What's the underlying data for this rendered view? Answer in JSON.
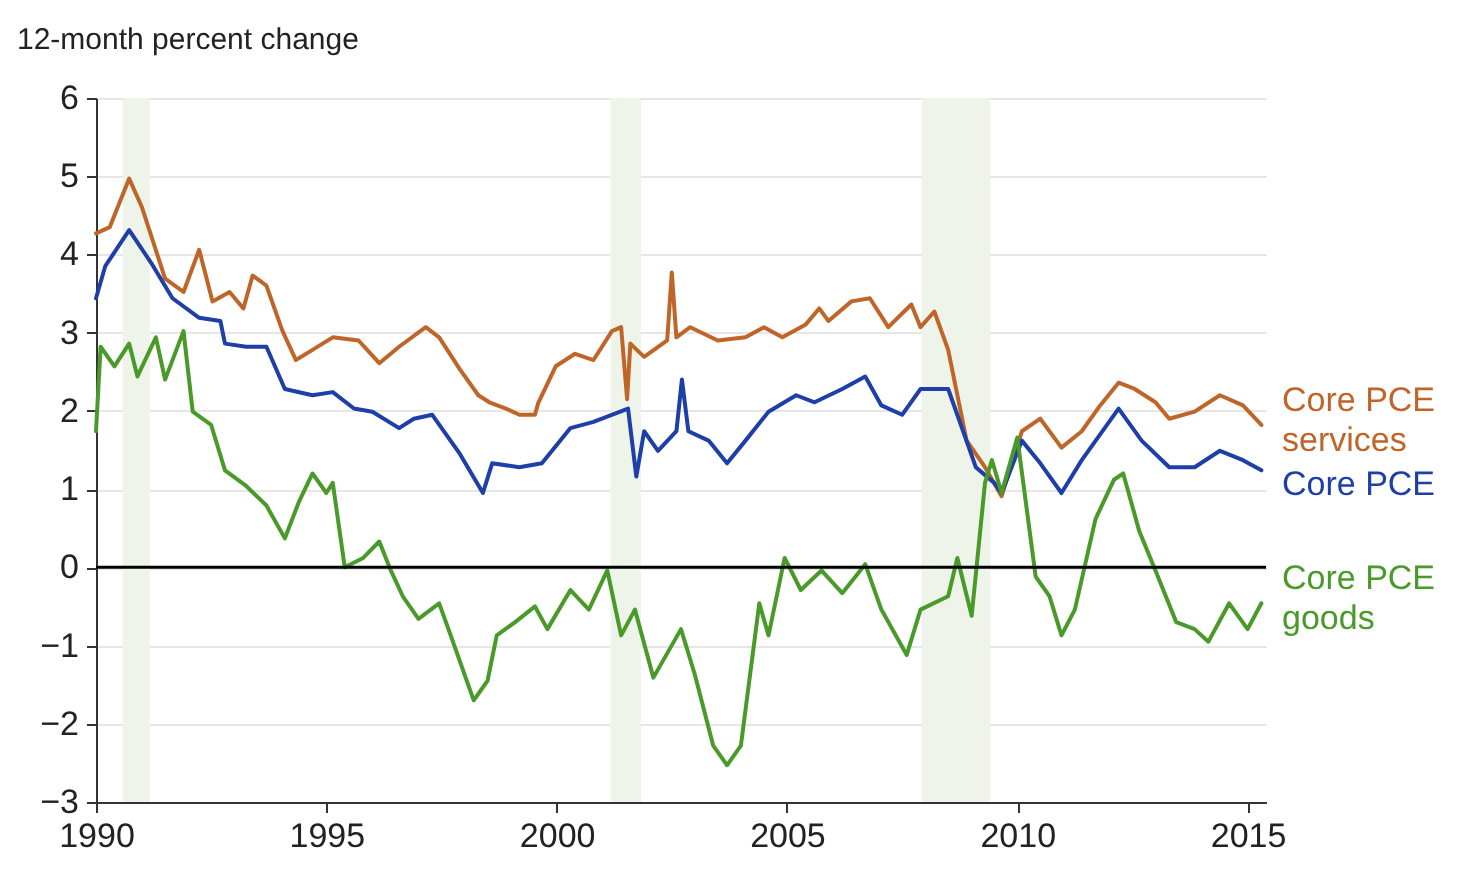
{
  "chart_data": {
    "type": "line",
    "ylabel": "12-month percent change",
    "xlim": [
      1990,
      2015.4
    ],
    "xticks": [
      1990,
      1995,
      2000,
      2005,
      2010,
      2015
    ],
    "ylim": [
      -3,
      6
    ],
    "yticks": [
      -3,
      -2,
      -1,
      0,
      1,
      2,
      3,
      4,
      5,
      6
    ],
    "grid": "y",
    "legend": false,
    "line_style": "solid",
    "marker": "none",
    "ref_lines": [
      {
        "axis": "y",
        "value": 0,
        "color": "#000000"
      }
    ],
    "bands": [
      {
        "axis": "x",
        "from": 1990.58,
        "to": 1991.17,
        "color": "#eef4ea"
      },
      {
        "axis": "x",
        "from": 2001.17,
        "to": 2001.83,
        "color": "#eef4ea"
      },
      {
        "axis": "x",
        "from": 2007.92,
        "to": 2009.42,
        "color": "#eef4ea"
      }
    ],
    "series": [
      {
        "name": "Core PCE services",
        "color": "#c0652a",
        "x": [
          1990.0,
          1990.3,
          1990.72,
          1991.0,
          1991.5,
          1991.9,
          1992.24,
          1992.53,
          1992.9,
          1993.2,
          1993.4,
          1993.7,
          1994.05,
          1994.34,
          1994.7,
          1995.14,
          1995.7,
          1996.15,
          1996.58,
          1997.16,
          1997.45,
          1997.9,
          1998.3,
          1998.54,
          1998.9,
          1999.19,
          1999.53,
          1999.6,
          1999.98,
          2000.4,
          2000.8,
          2001.2,
          2001.4,
          2001.53,
          2001.6,
          2001.9,
          2002.4,
          2002.5,
          2002.6,
          2002.9,
          2003.5,
          2004.1,
          2004.5,
          2004.9,
          2005.4,
          2005.7,
          2005.9,
          2006.4,
          2006.8,
          2007.2,
          2007.7,
          2007.9,
          2008.2,
          2008.5,
          2008.9,
          2009.3,
          2009.66,
          2010.1,
          2010.5,
          2010.96,
          2011.4,
          2011.8,
          2012.2,
          2012.55,
          2013.0,
          2013.3,
          2013.85,
          2014.4,
          2014.9,
          2015.3
        ],
        "values": [
          4.27,
          4.35,
          4.97,
          4.6,
          3.69,
          3.52,
          4.06,
          3.4,
          3.52,
          3.31,
          3.73,
          3.6,
          3.02,
          2.65,
          2.78,
          2.94,
          2.9,
          2.61,
          2.82,
          3.07,
          2.94,
          2.53,
          2.2,
          2.11,
          2.03,
          1.95,
          1.95,
          2.1,
          2.57,
          2.73,
          2.65,
          3.02,
          3.07,
          2.15,
          2.86,
          2.69,
          2.9,
          3.77,
          2.94,
          3.07,
          2.9,
          2.94,
          3.07,
          2.94,
          3.1,
          3.31,
          3.15,
          3.4,
          3.44,
          3.07,
          3.36,
          3.07,
          3.27,
          2.78,
          1.62,
          1.28,
          0.91,
          1.74,
          1.9,
          1.53,
          1.74,
          2.07,
          2.36,
          2.28,
          2.11,
          1.9,
          1.99,
          2.2,
          2.07,
          1.82
        ]
      },
      {
        "name": "Core PCE",
        "color": "#1f3fa8",
        "x": [
          1990.0,
          1990.2,
          1990.72,
          1991.2,
          1991.66,
          1992.24,
          1992.7,
          1992.8,
          1993.26,
          1993.7,
          1994.1,
          1994.7,
          1995.14,
          1995.6,
          1996.0,
          1996.58,
          1996.9,
          1997.3,
          1997.9,
          1998.4,
          1998.6,
          1999.19,
          1999.68,
          2000.3,
          2000.8,
          2001.55,
          2001.73,
          2001.9,
          2002.2,
          2002.6,
          2002.72,
          2002.86,
          2003.3,
          2003.7,
          2004.1,
          2004.6,
          2005.2,
          2005.6,
          2006.2,
          2006.7,
          2007.05,
          2007.5,
          2007.9,
          2008.5,
          2009.1,
          2009.5,
          2009.66,
          2010.1,
          2010.5,
          2010.96,
          2011.4,
          2012.2,
          2012.7,
          2013.3,
          2013.85,
          2014.4,
          2014.9,
          2015.3
        ],
        "values": [
          3.44,
          3.85,
          4.31,
          3.89,
          3.44,
          3.19,
          3.15,
          2.86,
          2.82,
          2.82,
          2.28,
          2.2,
          2.24,
          2.03,
          1.99,
          1.78,
          1.9,
          1.95,
          1.45,
          0.95,
          1.33,
          1.28,
          1.33,
          1.78,
          1.86,
          2.03,
          1.16,
          1.74,
          1.49,
          1.74,
          2.4,
          1.74,
          1.62,
          1.33,
          1.62,
          1.99,
          2.2,
          2.11,
          2.28,
          2.44,
          2.07,
          1.95,
          2.28,
          2.28,
          1.28,
          1.08,
          0.95,
          1.62,
          1.33,
          0.95,
          1.37,
          2.03,
          1.62,
          1.28,
          1.28,
          1.49,
          1.37,
          1.24
        ]
      },
      {
        "name": "Core PCE goods",
        "color": "#4a9a2a",
        "x": [
          1990.0,
          1990.1,
          1990.4,
          1990.72,
          1990.9,
          1991.3,
          1991.5,
          1991.9,
          1992.1,
          1992.5,
          1992.8,
          1993.26,
          1993.7,
          1994.1,
          1994.4,
          1994.7,
          1995.0,
          1995.14,
          1995.4,
          1995.8,
          1996.15,
          1996.4,
          1996.66,
          1997.0,
          1997.45,
          1997.7,
          1998.2,
          1998.5,
          1998.7,
          1999.1,
          1999.53,
          1999.8,
          2000.3,
          2000.7,
          2001.1,
          2001.4,
          2001.7,
          2002.1,
          2002.7,
          2003.0,
          2003.4,
          2003.7,
          2004.0,
          2004.4,
          2004.6,
          2004.95,
          2005.3,
          2005.75,
          2006.2,
          2006.7,
          2007.05,
          2007.6,
          2007.9,
          2008.5,
          2008.7,
          2009.01,
          2009.3,
          2009.45,
          2009.66,
          2010.0,
          2010.4,
          2010.7,
          2010.96,
          2011.25,
          2011.7,
          2012.1,
          2012.3,
          2012.65,
          2013.0,
          2013.45,
          2013.85,
          2014.15,
          2014.6,
          2015.0,
          2015.3
        ],
        "values": [
          1.74,
          2.82,
          2.57,
          2.86,
          2.44,
          2.94,
          2.4,
          3.02,
          1.99,
          1.82,
          1.24,
          1.04,
          0.79,
          0.37,
          0.83,
          1.2,
          0.95,
          1.08,
          0.0,
          0.12,
          0.33,
          -0.04,
          -0.37,
          -0.66,
          -0.46,
          -0.87,
          -1.7,
          -1.45,
          -0.87,
          -0.7,
          -0.5,
          -0.79,
          -0.29,
          -0.54,
          -0.04,
          -0.87,
          -0.54,
          -1.41,
          -0.79,
          -1.37,
          -2.28,
          -2.53,
          -2.28,
          -0.46,
          -0.87,
          0.12,
          -0.29,
          -0.04,
          -0.33,
          0.04,
          -0.54,
          -1.12,
          -0.54,
          -0.37,
          0.12,
          -0.62,
          1.08,
          1.37,
          0.95,
          1.66,
          -0.12,
          -0.37,
          -0.87,
          -0.54,
          0.62,
          1.12,
          1.2,
          0.46,
          -0.04,
          -0.7,
          -0.79,
          -0.95,
          -0.46,
          -0.79,
          -0.46
        ]
      }
    ]
  }
}
